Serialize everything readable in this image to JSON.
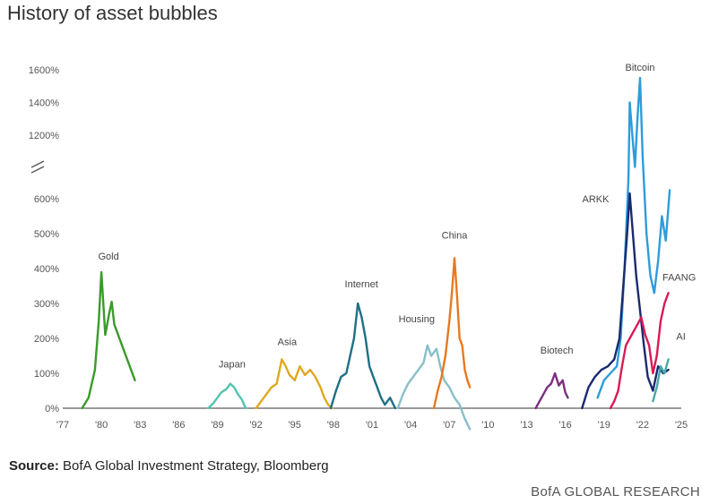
{
  "title": "History of asset bubbles",
  "source_label": "Source:",
  "source_text": "BofA Global Investment Strategy, Bloomberg",
  "brand": "BofA GLOBAL RESEARCH",
  "chart_data": {
    "type": "line",
    "title": "History of asset bubbles",
    "xlabel": "",
    "ylabel": "",
    "x_tick_labels": [
      "'77",
      "'80",
      "'83",
      "'86",
      "'89",
      "'92",
      "'95",
      "'98",
      "'01",
      "'04",
      "'07",
      "'10",
      "'13",
      "'16",
      "'19",
      "'22",
      "'25"
    ],
    "y_tick_labels": [
      "0%",
      "100%",
      "200%",
      "300%",
      "400%",
      "500%",
      "600%",
      "1200%",
      "1400%",
      "1600%"
    ],
    "y_axis_break": "between 600% and 1200%",
    "grid": false,
    "series": [
      {
        "name": "Gold",
        "color": "#3a9a2a",
        "x": [
          1978.5,
          1979.0,
          1979.5,
          1979.8,
          1980.0,
          1980.3,
          1980.6,
          1980.8,
          1981.0,
          1981.3,
          1981.6,
          1982.0,
          1982.3,
          1982.6
        ],
        "y": [
          0,
          30,
          110,
          250,
          390,
          210,
          270,
          305,
          240,
          210,
          180,
          140,
          110,
          80
        ]
      },
      {
        "name": "Japan",
        "color": "#52c3b0",
        "x": [
          1988.3,
          1988.7,
          1989.0,
          1989.3,
          1989.7,
          1990.0,
          1990.3,
          1990.6,
          1990.9,
          1991.2
        ],
        "y": [
          0,
          15,
          30,
          45,
          55,
          70,
          60,
          40,
          25,
          0
        ]
      },
      {
        "name": "Asia",
        "color": "#e0a820",
        "x": [
          1992.0,
          1992.4,
          1992.8,
          1993.2,
          1993.6,
          1994.0,
          1994.3,
          1994.6,
          1995.0,
          1995.4,
          1995.8,
          1996.2,
          1996.6,
          1997.0,
          1997.3,
          1997.6,
          1997.9
        ],
        "y": [
          0,
          20,
          40,
          60,
          70,
          140,
          120,
          95,
          80,
          120,
          95,
          110,
          90,
          60,
          30,
          10,
          0
        ]
      },
      {
        "name": "Internet",
        "color": "#1f6f85",
        "x": [
          1997.8,
          1998.2,
          1998.6,
          1999.0,
          1999.3,
          1999.6,
          1999.9,
          2000.2,
          2000.5,
          2000.8,
          2001.1,
          2001.4,
          2001.7,
          2002.0,
          2002.4,
          2002.8
        ],
        "y": [
          0,
          50,
          90,
          100,
          150,
          200,
          300,
          260,
          200,
          120,
          90,
          60,
          30,
          10,
          30,
          0
        ]
      },
      {
        "name": "Housing",
        "color": "#88bfc9",
        "x": [
          2003.0,
          2003.4,
          2003.8,
          2004.2,
          2004.6,
          2005.0,
          2005.3,
          2005.6,
          2006.0,
          2006.3,
          2006.6,
          2007.0,
          2007.4,
          2007.8,
          2008.2,
          2008.6
        ],
        "y": [
          0,
          40,
          70,
          90,
          110,
          130,
          180,
          150,
          170,
          120,
          80,
          60,
          30,
          10,
          -30,
          -60
        ]
      },
      {
        "name": "China",
        "color": "#e8791e",
        "x": [
          2005.8,
          2006.1,
          2006.4,
          2006.7,
          2007.0,
          2007.2,
          2007.4,
          2007.6,
          2007.8,
          2008.0,
          2008.2,
          2008.4,
          2008.6
        ],
        "y": [
          0,
          50,
          90,
          150,
          250,
          330,
          430,
          320,
          200,
          180,
          110,
          80,
          60
        ]
      },
      {
        "name": "Biotech",
        "color": "#7a2f7f",
        "x": [
          2013.7,
          2014.0,
          2014.3,
          2014.6,
          2014.9,
          2015.2,
          2015.5,
          2015.8,
          2016.0,
          2016.2
        ],
        "y": [
          0,
          20,
          40,
          60,
          70,
          100,
          65,
          80,
          45,
          30
        ]
      },
      {
        "name": "ARKK",
        "color": "#1a2a6e",
        "x": [
          2017.3,
          2017.8,
          2018.3,
          2018.8,
          2019.3,
          2019.8,
          2020.2,
          2020.5,
          2020.8,
          2021.0,
          2021.2,
          2021.5,
          2021.8,
          2022.1,
          2022.4,
          2022.8,
          2023.2,
          2023.6,
          2024.0
        ],
        "y": [
          0,
          60,
          90,
          110,
          120,
          140,
          200,
          350,
          500,
          650,
          520,
          380,
          280,
          180,
          90,
          50,
          120,
          100,
          110
        ]
      },
      {
        "name": "Bitcoin",
        "color": "#2d9cdb",
        "x": [
          2018.5,
          2019.0,
          2019.5,
          2020.0,
          2020.3,
          2020.6,
          2020.9,
          2021.0,
          2021.2,
          2021.4,
          2021.6,
          2021.8,
          2022.0,
          2022.3,
          2022.6,
          2022.9,
          2023.2,
          2023.5,
          2023.8,
          2024.1
        ],
        "y": [
          30,
          80,
          100,
          120,
          200,
          400,
          800,
          1400,
          1200,
          900,
          1300,
          1550,
          1000,
          500,
          380,
          330,
          420,
          550,
          480,
          680
        ]
      },
      {
        "name": "FAANG",
        "color": "#d81b53",
        "x": [
          2019.5,
          2019.8,
          2020.1,
          2020.4,
          2020.7,
          2021.0,
          2021.3,
          2021.6,
          2021.9,
          2022.2,
          2022.5,
          2022.8,
          2023.1,
          2023.4,
          2023.7,
          2024.0
        ],
        "y": [
          0,
          20,
          50,
          120,
          180,
          200,
          220,
          240,
          260,
          210,
          180,
          100,
          150,
          250,
          300,
          330
        ]
      },
      {
        "name": "AI",
        "color": "#4aa8a8",
        "x": [
          2022.8,
          2023.1,
          2023.4,
          2023.7,
          2024.0
        ],
        "y": [
          20,
          60,
          120,
          100,
          140
        ]
      }
    ]
  }
}
